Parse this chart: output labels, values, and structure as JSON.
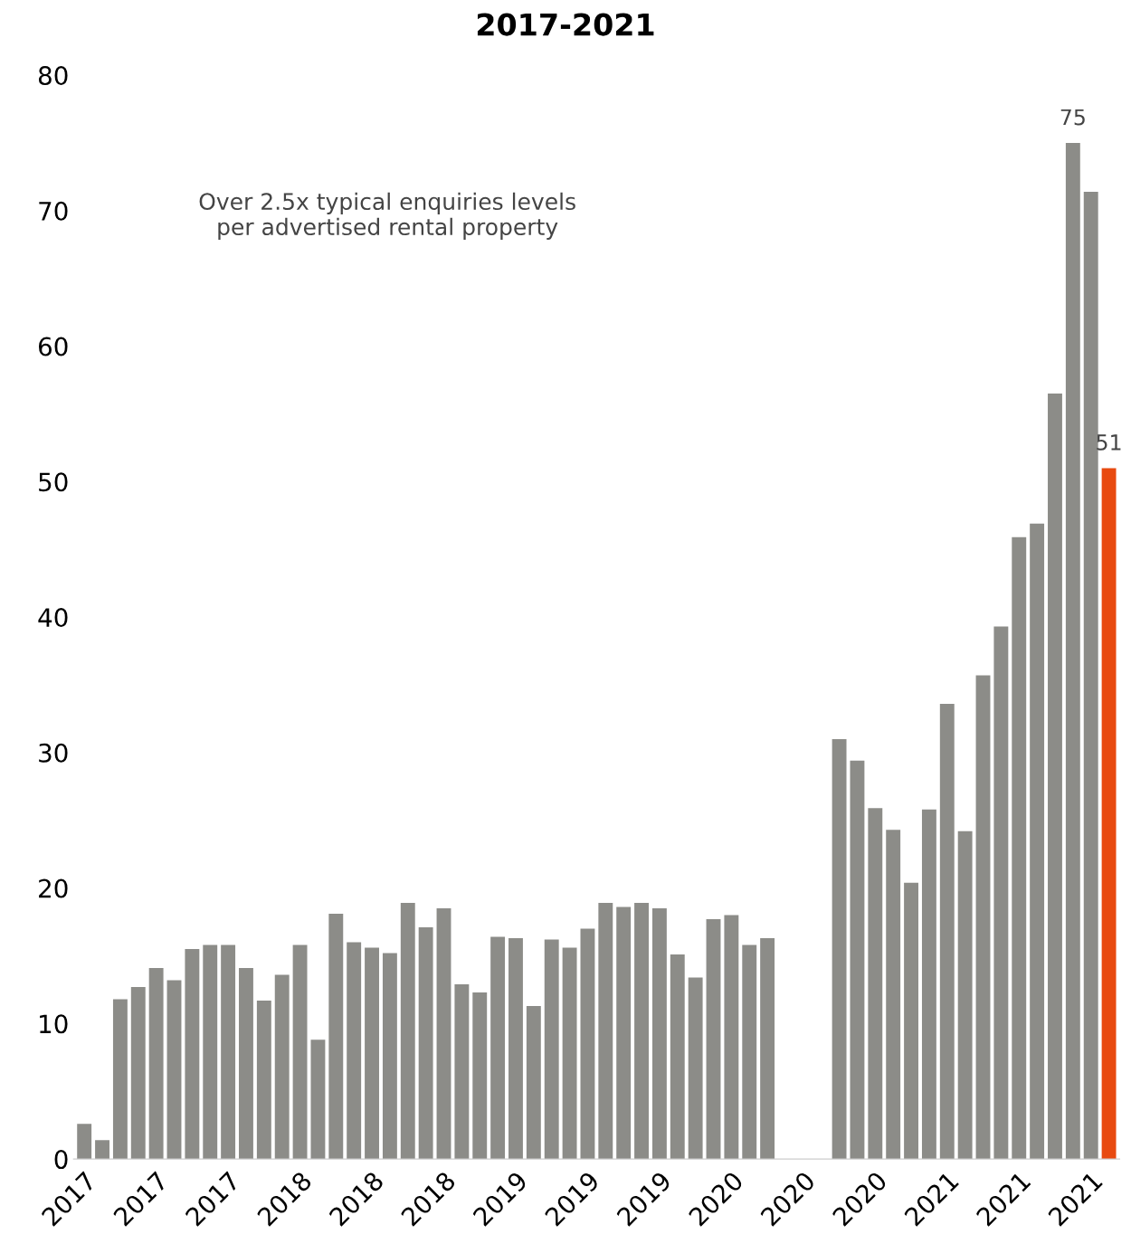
{
  "chart_data": {
    "type": "bar",
    "title": "2017-2021",
    "categories": [
      "2017",
      null,
      null,
      null,
      "2017",
      null,
      null,
      null,
      "2017",
      null,
      null,
      null,
      "2018",
      null,
      null,
      null,
      "2018",
      null,
      null,
      null,
      "2018",
      null,
      null,
      null,
      "2019",
      null,
      null,
      null,
      "2019",
      null,
      null,
      null,
      "2019",
      null,
      null,
      null,
      "2020",
      null,
      null,
      null,
      "2020",
      null,
      null,
      null,
      "2020",
      null,
      null,
      null,
      "2021",
      null,
      null,
      null,
      "2021",
      null,
      null,
      null,
      "2021",
      null
    ],
    "values": [
      2.6,
      1.4,
      11.8,
      12.7,
      14.1,
      13.2,
      15.5,
      15.8,
      15.8,
      14.1,
      11.7,
      13.6,
      15.8,
      8.8,
      18.1,
      16.0,
      15.6,
      15.2,
      18.9,
      17.1,
      18.5,
      12.9,
      12.3,
      16.4,
      16.3,
      11.3,
      16.2,
      15.6,
      17.0,
      18.9,
      18.6,
      18.9,
      18.5,
      15.1,
      13.4,
      17.7,
      18.0,
      15.8,
      16.3,
      null,
      null,
      null,
      31.0,
      29.4,
      25.9,
      24.3,
      20.4,
      25.8,
      33.6,
      24.2,
      35.7,
      39.3,
      45.9,
      46.9,
      56.5,
      75,
      71.4,
      51
    ],
    "colors": [
      "#8c8c88",
      "#8c8c88",
      "#8c8c88",
      "#8c8c88",
      "#8c8c88",
      "#8c8c88",
      "#8c8c88",
      "#8c8c88",
      "#8c8c88",
      "#8c8c88",
      "#8c8c88",
      "#8c8c88",
      "#8c8c88",
      "#8c8c88",
      "#8c8c88",
      "#8c8c88",
      "#8c8c88",
      "#8c8c88",
      "#8c8c88",
      "#8c8c88",
      "#8c8c88",
      "#8c8c88",
      "#8c8c88",
      "#8c8c88",
      "#8c8c88",
      "#8c8c88",
      "#8c8c88",
      "#8c8c88",
      "#8c8c88",
      "#8c8c88",
      "#8c8c88",
      "#8c8c88",
      "#8c8c88",
      "#8c8c88",
      "#8c8c88",
      "#8c8c88",
      "#8c8c88",
      "#8c8c88",
      "#8c8c88",
      "#8c8c88",
      "#8c8c88",
      "#8c8c88",
      "#8c8c88",
      "#8c8c88",
      "#8c8c88",
      "#8c8c88",
      "#8c8c88",
      "#8c8c88",
      "#8c8c88",
      "#8c8c88",
      "#8c8c88",
      "#8c8c88",
      "#8c8c88",
      "#8c8c88",
      "#8c8c88",
      "#8c8c88",
      "#8c8c88",
      "#e84a10"
    ],
    "value_labels": [
      null,
      null,
      null,
      null,
      null,
      null,
      null,
      null,
      null,
      null,
      null,
      null,
      null,
      null,
      null,
      null,
      null,
      null,
      null,
      null,
      null,
      null,
      null,
      null,
      null,
      null,
      null,
      null,
      null,
      null,
      null,
      null,
      null,
      null,
      null,
      null,
      null,
      null,
      null,
      null,
      null,
      null,
      null,
      null,
      null,
      null,
      null,
      null,
      null,
      null,
      null,
      null,
      null,
      null,
      null,
      "75",
      null,
      "51"
    ],
    "ylim": [
      0,
      80
    ],
    "yticks": [
      0,
      10,
      20,
      30,
      40,
      50,
      60,
      70,
      80
    ],
    "grid": false,
    "legend": false,
    "annotations": [
      "Over 2.5x typical enquiries levels\nper advertised rental property"
    ]
  }
}
